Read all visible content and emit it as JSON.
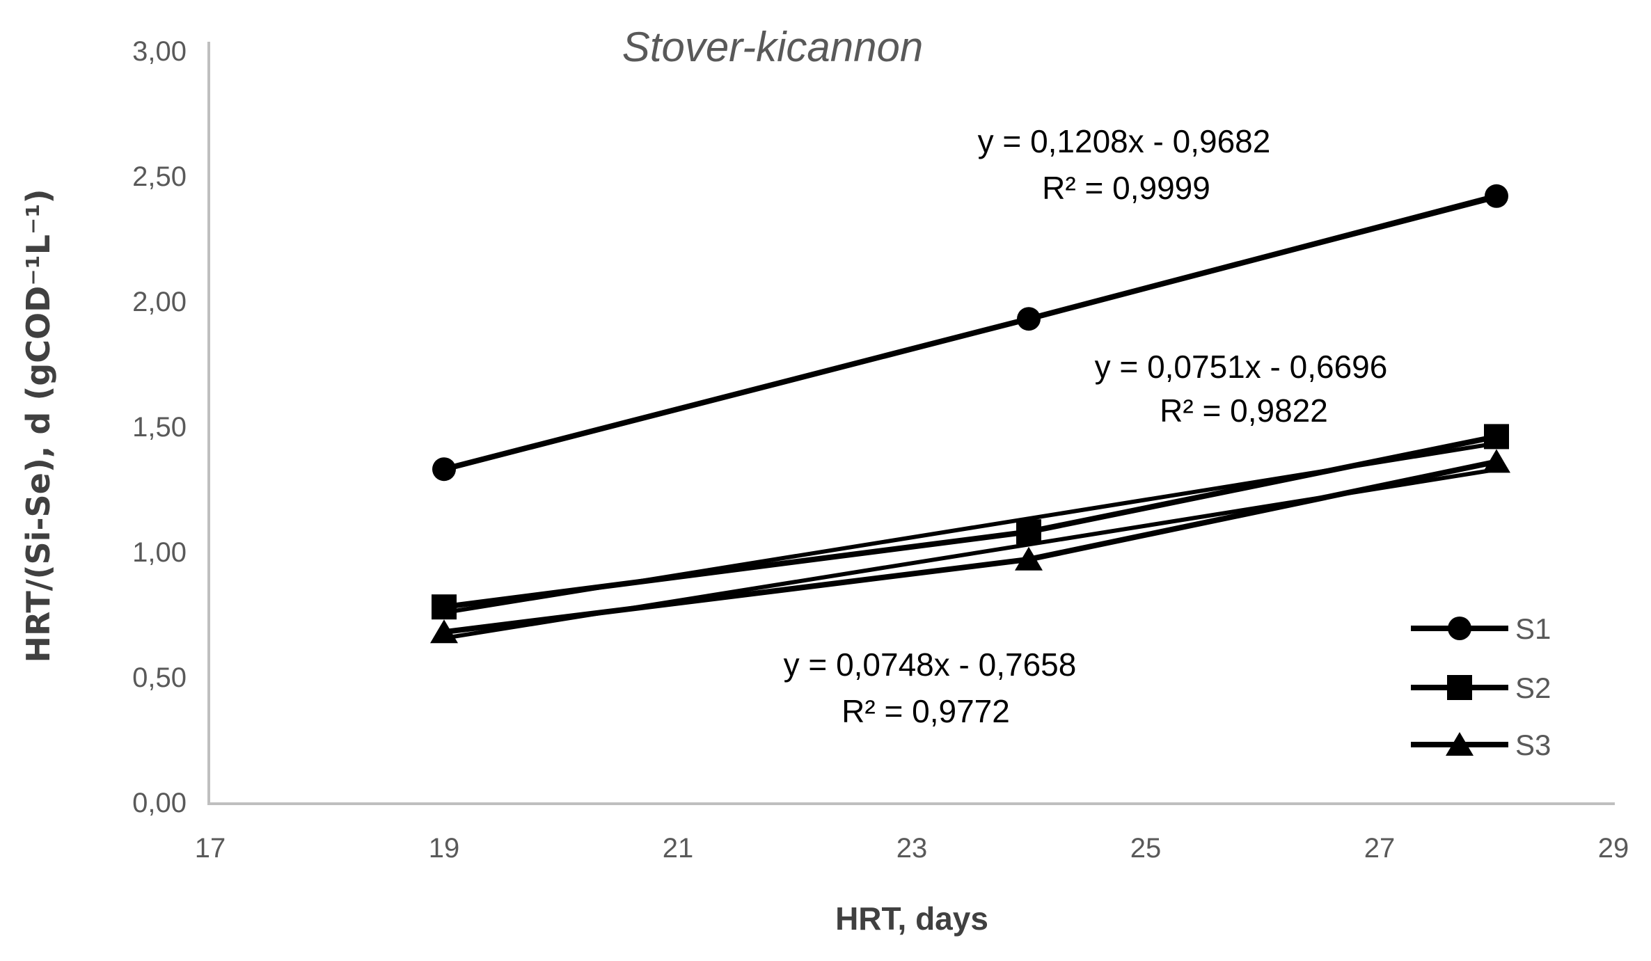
{
  "chart_data": {
    "type": "scatter",
    "title": "Stover-kicannon",
    "xlabel": "HRT, days",
    "ylabel": "HRT/(Si-Se), d (gCOD⁻¹L⁻¹)",
    "xlim": [
      17,
      29
    ],
    "ylim": [
      0,
      3
    ],
    "grid": false,
    "legend_position": "inside-bottom-right",
    "x_tick_values": [
      17,
      19,
      21,
      23,
      25,
      27,
      29
    ],
    "x_tick_labels": [
      "17",
      "19",
      "21",
      "23",
      "25",
      "27",
      "29"
    ],
    "y_tick_values": [
      0,
      0.5,
      1,
      1.5,
      2,
      2.5,
      3
    ],
    "y_tick_labels": [
      "0,00",
      "0,50",
      "1,00",
      "1,50",
      "2,00",
      "2,50",
      "3,00"
    ],
    "series": [
      {
        "name": "S1",
        "marker": "circle",
        "x": [
          19,
          24,
          28
        ],
        "y": [
          1.33,
          1.93,
          2.42
        ],
        "trend": {
          "slope": 0.1208,
          "intercept": -0.9682
        },
        "equation": "y = 0,1208x - 0,9682",
        "r2": "R² = 0,9999"
      },
      {
        "name": "S2",
        "marker": "square",
        "x": [
          19,
          24,
          28
        ],
        "y": [
          0.78,
          1.08,
          1.46
        ],
        "trend": {
          "slope": 0.0751,
          "intercept": -0.6696
        },
        "equation": "y = 0,0751x - 0,6696",
        "r2": "R² = 0,9822"
      },
      {
        "name": "S3",
        "marker": "triangle",
        "x": [
          19,
          24,
          28
        ],
        "y": [
          0.68,
          0.97,
          1.36
        ],
        "trend": {
          "slope": 0.0748,
          "intercept": -0.7658
        },
        "equation": "y = 0,0748x - 0,7658",
        "r2": "R² = 0,9772"
      }
    ],
    "colors": {
      "series": "#000000",
      "axis_line": "#bfbfbf",
      "tick_label": "#595959",
      "title": "#595959",
      "equation": "#000000",
      "axis_title": "#404040",
      "legend_label": "#595959"
    }
  }
}
